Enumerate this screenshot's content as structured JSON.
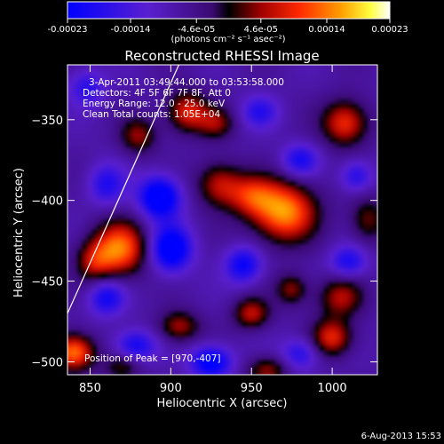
{
  "colorbar": {
    "ticks": [
      "-0.00023",
      "-0.00014",
      "-4.6e-05",
      "4.6e-05",
      "0.00014",
      "0.00023"
    ],
    "tick_values": [
      -0.00023,
      -0.00014,
      -4.6e-05,
      4.6e-05,
      0.00014,
      0.00023
    ],
    "range": [
      -0.00023,
      0.00023
    ],
    "units": "(photons cm⁻² s⁻¹ asec⁻²)"
  },
  "annotations": {
    "time_range": "3-Apr-2011 03:49:44.000 to 03:53:58.000",
    "detectors": "Detectors: 4F 5F 6F 7F 8F, Att 0",
    "energy": "Energy Range: 12.0 - 25.0 keV",
    "clean": "Clean     Total counts: 1.05E+04",
    "peak": "Position of Peak = [970,-407]"
  },
  "timestamp": "6-Aug-2013 15:53",
  "chart_data": {
    "type": "heatmap",
    "title": "Reconstructed RHESSI Image",
    "xlabel": "Heliocentric X (arcsec)",
    "ylabel": "Heliocentric Y (arcsec)",
    "xlim": [
      836,
      1028
    ],
    "ylim": [
      -508,
      -316
    ],
    "x_ticks": [
      850,
      900,
      950,
      1000
    ],
    "y_ticks": [
      -500,
      -450,
      -400,
      -350
    ],
    "colormap": "blue-purple-black-red-yellow-white",
    "peak": [
      970,
      -407
    ],
    "limb_line": [
      [
        836,
        -470
      ],
      [
        905,
        -316
      ]
    ],
    "sources": [
      {
        "x": 970,
        "y": -407,
        "amp": 1.0,
        "sx": 14,
        "sy": 13
      },
      {
        "x": 950,
        "y": -397,
        "amp": 0.55,
        "sx": 10,
        "sy": 9
      },
      {
        "x": 930,
        "y": -390,
        "amp": 0.6,
        "sx": 10,
        "sy": 10
      },
      {
        "x": 868,
        "y": -430,
        "amp": 0.92,
        "sx": 12,
        "sy": 12
      },
      {
        "x": 852,
        "y": -438,
        "amp": 0.45,
        "sx": 8,
        "sy": 9
      },
      {
        "x": 840,
        "y": -494,
        "amp": 0.95,
        "sx": 9,
        "sy": 8
      },
      {
        "x": 910,
        "y": -345,
        "amp": 0.7,
        "sx": 9,
        "sy": 9
      },
      {
        "x": 928,
        "y": -352,
        "amp": 0.45,
        "sx": 8,
        "sy": 7
      },
      {
        "x": 880,
        "y": -360,
        "amp": 0.5,
        "sx": 8,
        "sy": 8
      },
      {
        "x": 1008,
        "y": -352,
        "amp": 0.75,
        "sx": 10,
        "sy": 10
      },
      {
        "x": 1022,
        "y": -412,
        "amp": 0.45,
        "sx": 8,
        "sy": 10
      },
      {
        "x": 1005,
        "y": -460,
        "amp": 0.55,
        "sx": 10,
        "sy": 9
      },
      {
        "x": 950,
        "y": -470,
        "amp": 0.6,
        "sx": 8,
        "sy": 7
      },
      {
        "x": 975,
        "y": -455,
        "amp": 0.5,
        "sx": 7,
        "sy": 7
      },
      {
        "x": 1000,
        "y": -485,
        "amp": 0.7,
        "sx": 9,
        "sy": 8
      },
      {
        "x": 905,
        "y": -478,
        "amp": 0.55,
        "sx": 9,
        "sy": 7
      },
      {
        "x": 870,
        "y": -503,
        "amp": 0.4,
        "sx": 8,
        "sy": 6
      },
      {
        "x": 960,
        "y": -505,
        "amp": 0.5,
        "sx": 9,
        "sy": 6
      },
      {
        "x": 893,
        "y": -398,
        "amp": -0.95,
        "sx": 9,
        "sy": 9
      },
      {
        "x": 900,
        "y": -430,
        "amp": -0.9,
        "sx": 9,
        "sy": 10
      },
      {
        "x": 945,
        "y": -440,
        "amp": -0.65,
        "sx": 8,
        "sy": 8
      },
      {
        "x": 980,
        "y": -375,
        "amp": -0.55,
        "sx": 8,
        "sy": 7
      },
      {
        "x": 1015,
        "y": -385,
        "amp": -0.5,
        "sx": 7,
        "sy": 7
      },
      {
        "x": 1010,
        "y": -438,
        "amp": -0.55,
        "sx": 8,
        "sy": 7
      },
      {
        "x": 860,
        "y": -460,
        "amp": -0.6,
        "sx": 8,
        "sy": 8
      },
      {
        "x": 878,
        "y": -490,
        "amp": -0.6,
        "sx": 9,
        "sy": 7
      },
      {
        "x": 925,
        "y": -500,
        "amp": -0.8,
        "sx": 9,
        "sy": 7
      },
      {
        "x": 980,
        "y": -495,
        "amp": -0.5,
        "sx": 8,
        "sy": 7
      },
      {
        "x": 860,
        "y": -390,
        "amp": -0.5,
        "sx": 8,
        "sy": 9
      },
      {
        "x": 955,
        "y": -345,
        "amp": -0.45,
        "sx": 8,
        "sy": 7
      },
      {
        "x": 848,
        "y": -330,
        "amp": -0.45,
        "sx": 8,
        "sy": 8
      }
    ]
  }
}
